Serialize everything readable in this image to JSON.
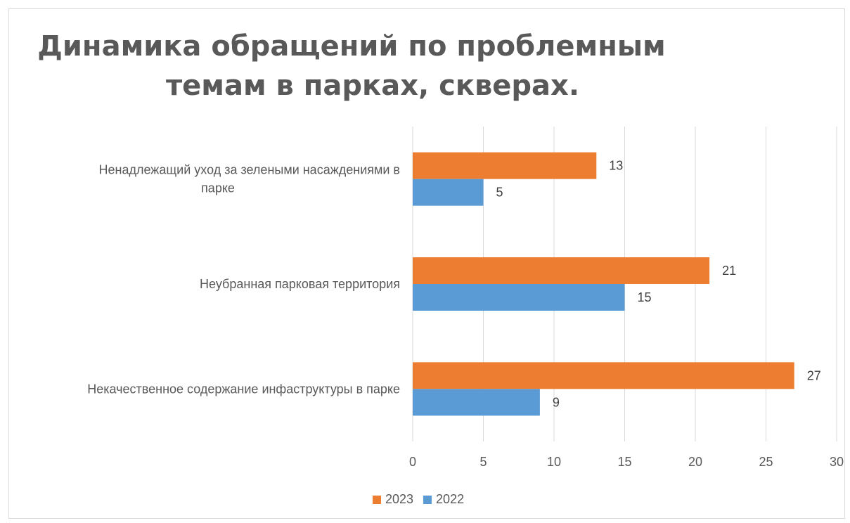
{
  "chart_data": {
    "type": "bar",
    "orientation": "horizontal",
    "title_lines": [
      "Динамика обращений по проблемным",
      "темам в парках, скверах."
    ],
    "categories": [
      [
        "Ненадлежащий уход за зелеными насаждениями в",
        "парке"
      ],
      [
        "Неубранная парковая территория"
      ],
      [
        "Некачественное содержание инфаструктуры в парке"
      ]
    ],
    "series": [
      {
        "name": "2023",
        "color": "#ED7D31",
        "values": [
          13,
          21,
          27
        ]
      },
      {
        "name": "2022",
        "color": "#5B9BD5",
        "values": [
          5,
          15,
          9
        ]
      }
    ],
    "xlim": [
      0,
      30
    ],
    "xticks": [
      0,
      5,
      10,
      15,
      20,
      25,
      30
    ],
    "grid": true,
    "legend_placement": "bottom",
    "data_labels": true
  }
}
